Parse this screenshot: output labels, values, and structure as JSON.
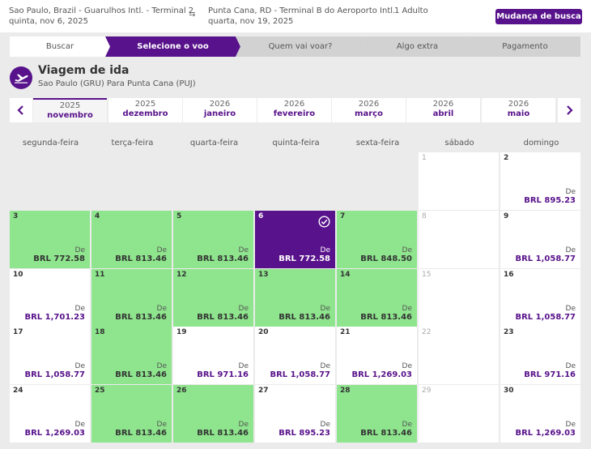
{
  "search": {
    "origin": "Sao Paulo, Brazil - Guarulhos Intl. - Terminal 2",
    "origin_date": "quinta, nov 6, 2025",
    "destination": "Punta Cana, RD - Terminal B do Aeroporto Intl.",
    "destination_date": "quarta, nov 19, 2025",
    "passengers": "1 Adulto",
    "change_button": "Mudança de busca"
  },
  "steps": [
    {
      "label": "Buscar"
    },
    {
      "label": "Selecione o voo"
    },
    {
      "label": "Quem vai voar?"
    },
    {
      "label": "Algo extra"
    },
    {
      "label": "Pagamento"
    }
  ],
  "flight": {
    "title": "Viagem de ida",
    "route": "Sao Paulo (GRU) Para Punta Cana (PUJ)"
  },
  "months": [
    {
      "year": "2025",
      "name": "novembro"
    },
    {
      "year": "2025",
      "name": "dezembro"
    },
    {
      "year": "2026",
      "name": "janeiro"
    },
    {
      "year": "2026",
      "name": "fevereiro"
    },
    {
      "year": "2026",
      "name": "março"
    },
    {
      "year": "2026",
      "name": "abril"
    },
    {
      "year": "2026",
      "name": "maio"
    }
  ],
  "weekdays": [
    "segunda-feira",
    "terça-feira",
    "quarta-feira",
    "quinta-feira",
    "sexta-feira",
    "sábado",
    "domingo"
  ],
  "price_prefix": "De",
  "days": [
    {
      "day": "1",
      "price": "",
      "status": "disabled"
    },
    {
      "day": "2",
      "price": "BRL 895.23",
      "status": "white"
    },
    {
      "day": "3",
      "price": "BRL 772.58",
      "status": "green"
    },
    {
      "day": "4",
      "price": "BRL 813.46",
      "status": "green"
    },
    {
      "day": "5",
      "price": "BRL 813.46",
      "status": "green"
    },
    {
      "day": "6",
      "price": "BRL 772.58",
      "status": "selected"
    },
    {
      "day": "7",
      "price": "BRL 848.50",
      "status": "green"
    },
    {
      "day": "8",
      "price": "",
      "status": "disabled"
    },
    {
      "day": "9",
      "price": "BRL 1,058.77",
      "status": "white"
    },
    {
      "day": "10",
      "price": "BRL 1,701.23",
      "status": "white"
    },
    {
      "day": "11",
      "price": "BRL 813.46",
      "status": "green"
    },
    {
      "day": "12",
      "price": "BRL 813.46",
      "status": "green"
    },
    {
      "day": "13",
      "price": "BRL 813.46",
      "status": "green"
    },
    {
      "day": "14",
      "price": "BRL 813.46",
      "status": "green"
    },
    {
      "day": "15",
      "price": "",
      "status": "disabled"
    },
    {
      "day": "16",
      "price": "BRL 1,058.77",
      "status": "white"
    },
    {
      "day": "17",
      "price": "BRL 1,058.77",
      "status": "white"
    },
    {
      "day": "18",
      "price": "BRL 813.46",
      "status": "green"
    },
    {
      "day": "19",
      "price": "BRL 971.16",
      "status": "white"
    },
    {
      "day": "20",
      "price": "BRL 1,058.77",
      "status": "white"
    },
    {
      "day": "21",
      "price": "BRL 1,269.03",
      "status": "white"
    },
    {
      "day": "22",
      "price": "",
      "status": "disabled"
    },
    {
      "day": "23",
      "price": "BRL 971.16",
      "status": "white"
    },
    {
      "day": "24",
      "price": "BRL 1,269.03",
      "status": "white"
    },
    {
      "day": "25",
      "price": "BRL 813.46",
      "status": "green"
    },
    {
      "day": "26",
      "price": "BRL 813.46",
      "status": "green"
    },
    {
      "day": "27",
      "price": "BRL 895.23",
      "status": "white"
    },
    {
      "day": "28",
      "price": "BRL 813.46",
      "status": "green"
    },
    {
      "day": "29",
      "price": "",
      "status": "disabled"
    },
    {
      "day": "30",
      "price": "BRL 1,269.03",
      "status": "white"
    }
  ],
  "icons": {
    "swap": "swap-arrows-icon",
    "plane": "airplane-takeoff-icon",
    "prev": "chevron-left-icon",
    "next": "chevron-right-icon",
    "check": "check-circle-icon"
  },
  "colors": {
    "brand": "#58128b",
    "available": "#8ee58d",
    "background": "#ebebeb"
  }
}
